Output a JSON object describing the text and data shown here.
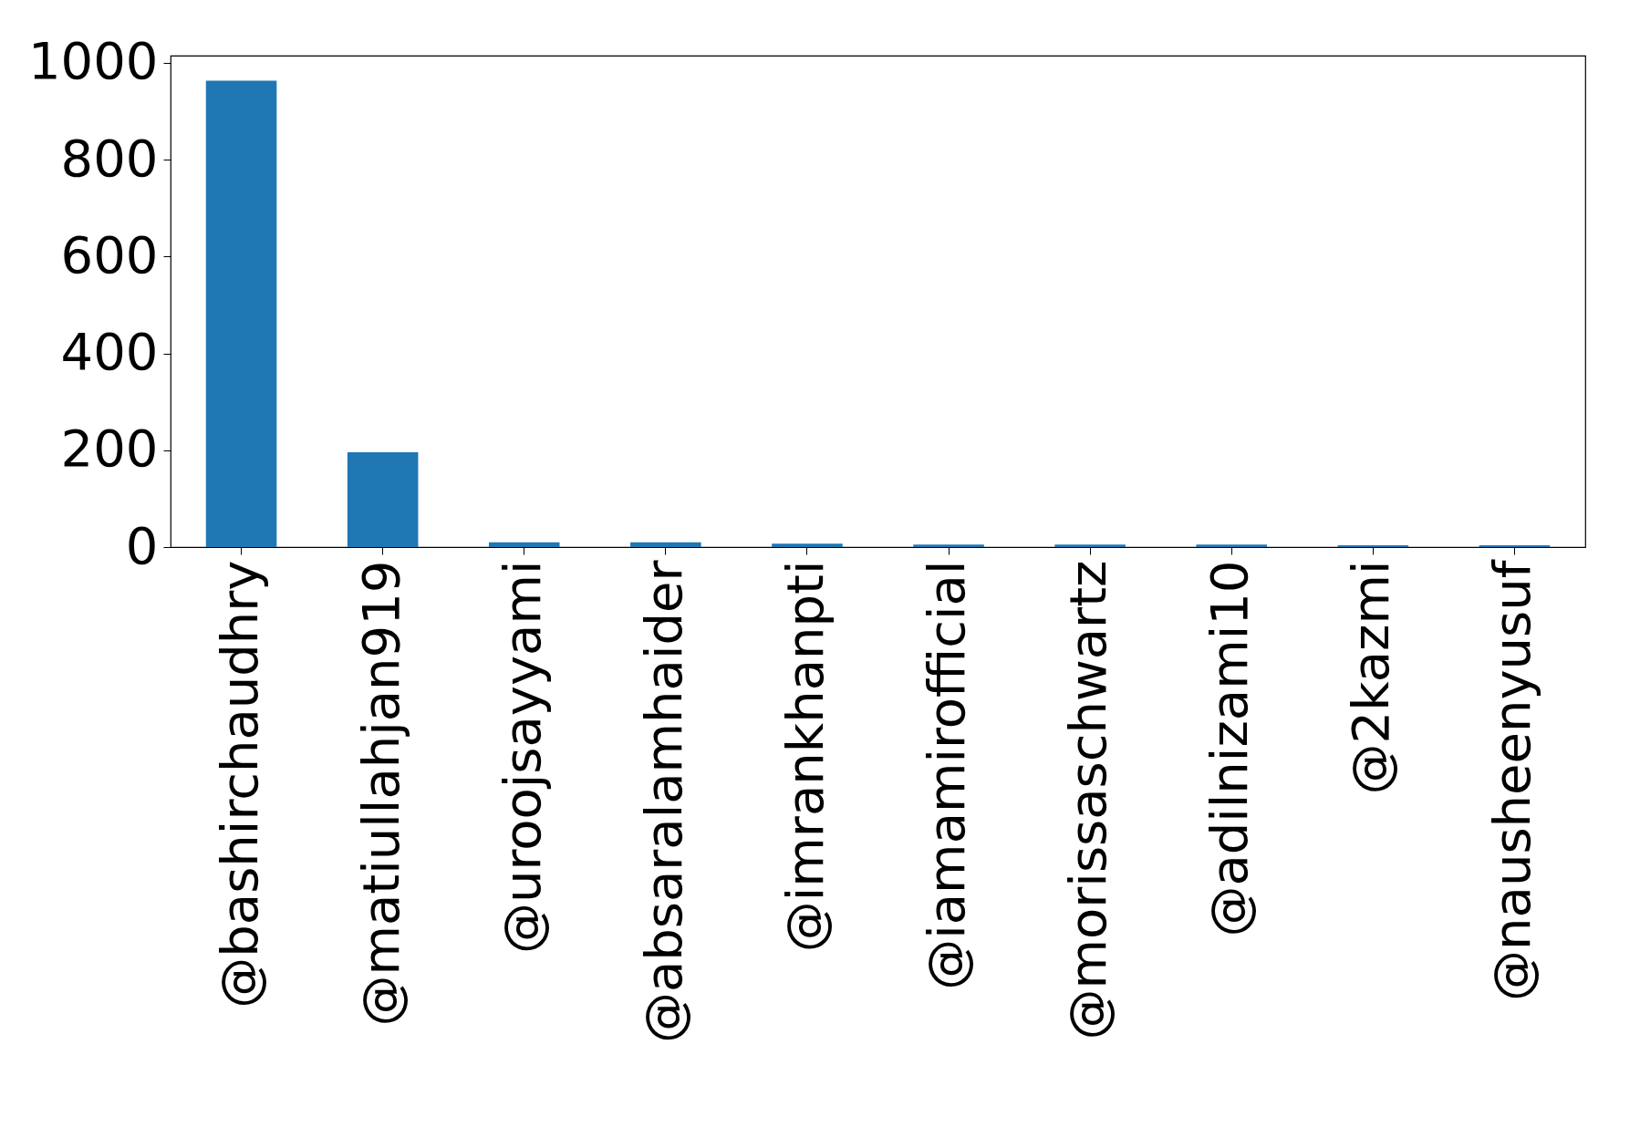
{
  "chart_data": {
    "type": "bar",
    "categories": [
      "@bashirchaudhry",
      "@matiullahjan919",
      "@uroojsayyami",
      "@absaralamhaider",
      "@imrankhanpti",
      "@iamamirofficial",
      "@morissaschwartz",
      "@adilnizami10",
      "@2kazmi",
      "@nausheenyusuf"
    ],
    "values": [
      963,
      196,
      10,
      10,
      7,
      5,
      5,
      5,
      4,
      4
    ],
    "color": "#1f77b4",
    "ylim": [
      0,
      1015
    ],
    "yticks": [
      0,
      200,
      400,
      600,
      800,
      1000
    ],
    "grid": false
  }
}
